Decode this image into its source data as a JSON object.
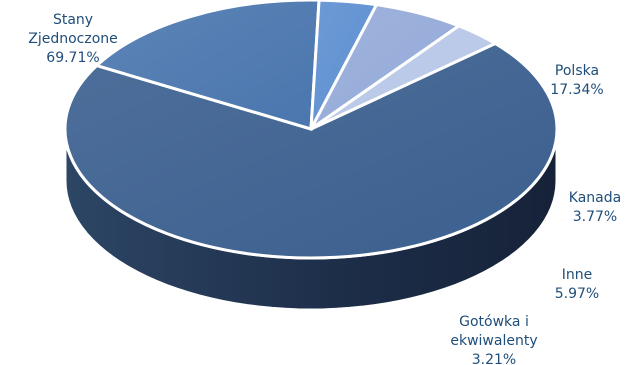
{
  "chart_data": {
    "type": "pie",
    "title": "",
    "slices": [
      {
        "label": "Stany Zjednoczone",
        "label_lines": [
          "Stany",
          "Zjednoczone"
        ],
        "value_text": "69.71%",
        "value": 69.71,
        "color": "#3B5F8F"
      },
      {
        "label": "Polska",
        "label_lines": [
          "Polska"
        ],
        "value_text": "17.34%",
        "value": 17.34,
        "color": "#4A76AE"
      },
      {
        "label": "Kanada",
        "label_lines": [
          "Kanada"
        ],
        "value_text": "3.77%",
        "value": 3.77,
        "color": "#5D8FD1"
      },
      {
        "label": "Inne",
        "label_lines": [
          "Inne"
        ],
        "value_text": "5.97%",
        "value": 5.97,
        "color": "#94AAD8"
      },
      {
        "label": "Gotówka i ekwiwalenty",
        "label_lines": [
          "Gotówka i",
          "ekwiwalenty"
        ],
        "value_text": "3.21%",
        "value": 3.21,
        "color": "#B7C7E7"
      }
    ],
    "label_color": "#1F4E79",
    "side_color": "#1E2F4A"
  }
}
